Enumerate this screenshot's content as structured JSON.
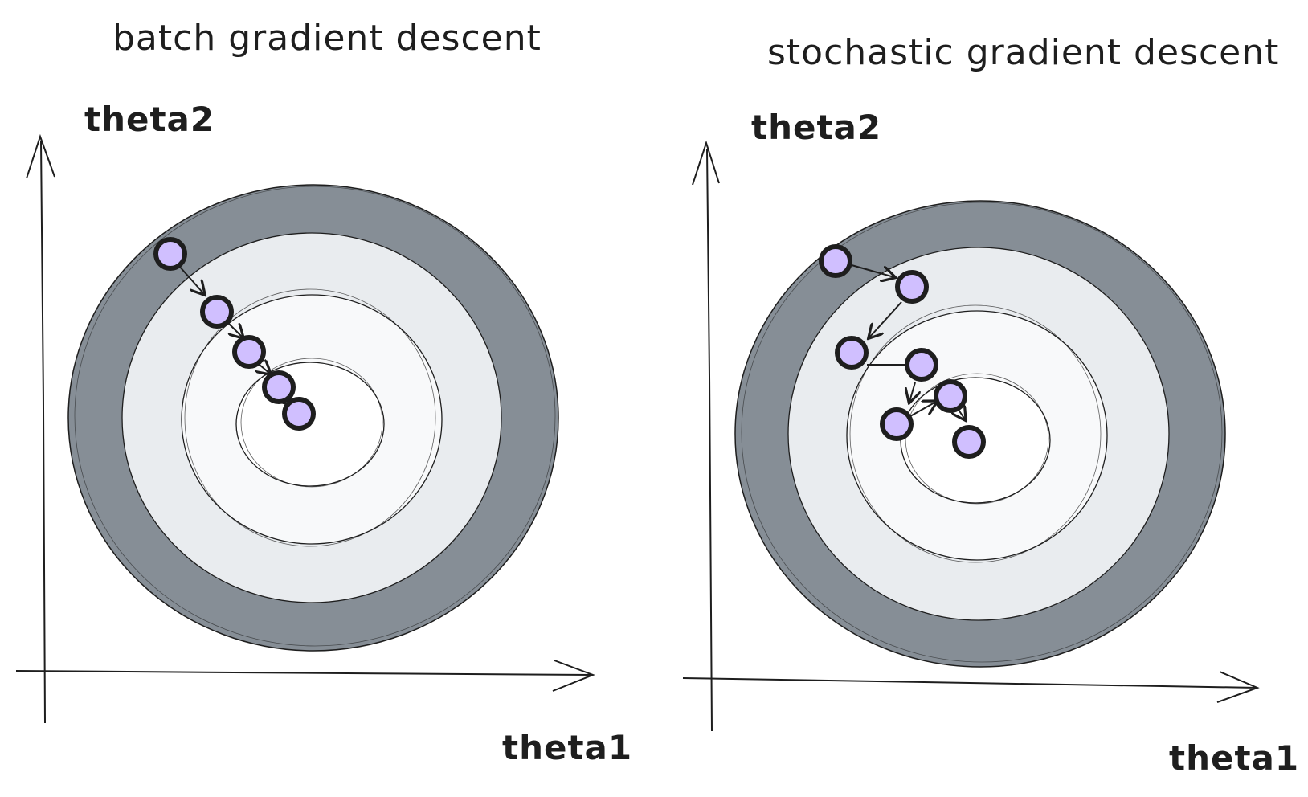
{
  "colors": {
    "ring_outer": "#868e96",
    "ring_middle": "#e9ecef",
    "ring_inner": "#f8f9fa",
    "center": "#ffffff",
    "point_fill": "#d0bfff",
    "stroke": "#1e1e1e"
  },
  "panels": [
    {
      "title": "batch gradient descent",
      "x_label": "theta1",
      "y_label": "theta2"
    },
    {
      "title": "stochastic gradient descent",
      "x_label": "theta1",
      "y_label": "theta2"
    }
  ]
}
